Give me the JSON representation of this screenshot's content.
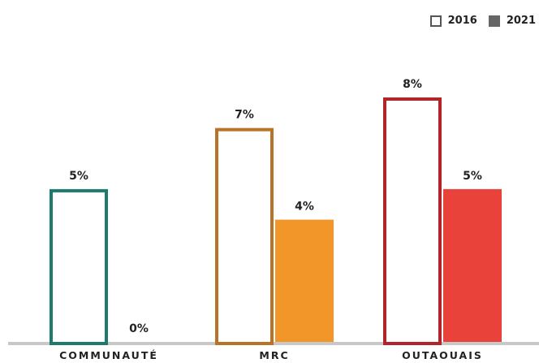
{
  "legend": [
    {
      "label": "2016",
      "style": "outline",
      "color": "#555555"
    },
    {
      "label": "2021",
      "style": "filled",
      "color": "#666666"
    }
  ],
  "chart_data": {
    "type": "bar",
    "categories": [
      "COMMUNAUTÉ",
      "MRC",
      "OUTAOUAIS"
    ],
    "series": [
      {
        "name": "2016",
        "values": [
          5,
          7,
          8
        ],
        "labels": [
          "5%",
          "7%",
          "8%"
        ]
      },
      {
        "name": "2021",
        "values": [
          0,
          4,
          5
        ],
        "labels": [
          "0%",
          "4%",
          "5%"
        ]
      }
    ],
    "category_colors": {
      "2016": [
        "#1f7a6e",
        "#b87327",
        "#b3232a"
      ],
      "2021": [
        "#1f7a6e",
        "#f2962a",
        "#e8423a"
      ]
    },
    "ylim": [
      0,
      8
    ],
    "baseline_color": "#c8c8c8",
    "grid": false,
    "legend_position": "top-right"
  }
}
